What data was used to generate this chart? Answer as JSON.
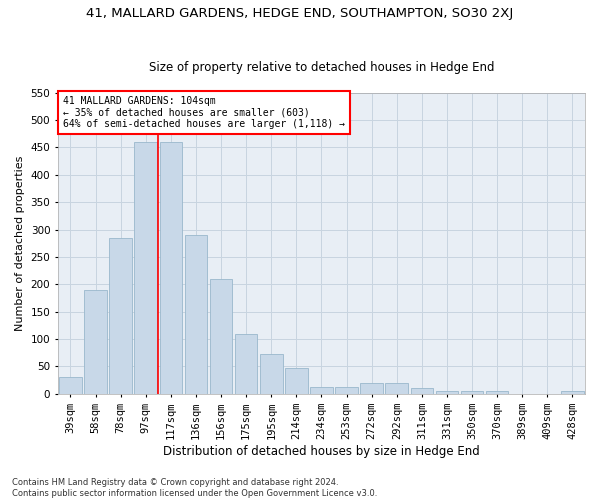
{
  "title": "41, MALLARD GARDENS, HEDGE END, SOUTHAMPTON, SO30 2XJ",
  "subtitle": "Size of property relative to detached houses in Hedge End",
  "xlabel": "Distribution of detached houses by size in Hedge End",
  "ylabel": "Number of detached properties",
  "categories": [
    "39sqm",
    "58sqm",
    "78sqm",
    "97sqm",
    "117sqm",
    "136sqm",
    "156sqm",
    "175sqm",
    "195sqm",
    "214sqm",
    "234sqm",
    "253sqm",
    "272sqm",
    "292sqm",
    "311sqm",
    "331sqm",
    "350sqm",
    "370sqm",
    "389sqm",
    "409sqm",
    "428sqm"
  ],
  "values": [
    30,
    190,
    285,
    460,
    460,
    290,
    210,
    110,
    72,
    48,
    13,
    13,
    20,
    20,
    10,
    6,
    5,
    5,
    0,
    0,
    5
  ],
  "bar_color": "#c8d8e8",
  "bar_edge_color": "#9ab8cc",
  "vline_x_index": 3,
  "vline_color": "red",
  "annotation_text": "41 MALLARD GARDENS: 104sqm\n← 35% of detached houses are smaller (603)\n64% of semi-detached houses are larger (1,118) →",
  "annotation_box_color": "white",
  "annotation_box_edge_color": "red",
  "ylim": [
    0,
    550
  ],
  "yticks": [
    0,
    50,
    100,
    150,
    200,
    250,
    300,
    350,
    400,
    450,
    500,
    550
  ],
  "grid_color": "#c8d4e0",
  "background_color": "#e8eef5",
  "footer": "Contains HM Land Registry data © Crown copyright and database right 2024.\nContains public sector information licensed under the Open Government Licence v3.0.",
  "title_fontsize": 9.5,
  "subtitle_fontsize": 8.5,
  "xlabel_fontsize": 8.5,
  "ylabel_fontsize": 8,
  "tick_fontsize": 7.5,
  "annotation_fontsize": 7,
  "footer_fontsize": 6
}
